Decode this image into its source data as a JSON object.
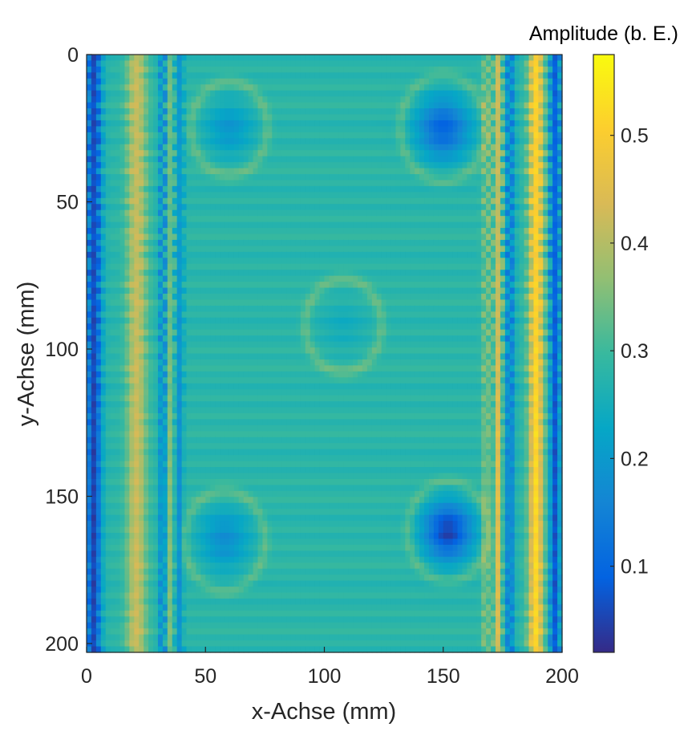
{
  "chart_data": {
    "type": "heatmap",
    "title": "",
    "xlabel": "x-Achse (mm)",
    "ylabel": "y-Achse (mm)",
    "xlim": [
      0,
      200
    ],
    "ylim": [
      0,
      203
    ],
    "y_direction": "reversed (0 at top)",
    "x_ticks": [
      "0",
      "50",
      "100",
      "150",
      "200"
    ],
    "y_ticks": [
      "0",
      "50",
      "100",
      "150",
      "200"
    ],
    "colorbar": {
      "title": "Amplitude (b. E.)",
      "range": [
        0.02,
        0.575
      ],
      "ticks": [
        "0.1",
        "0.2",
        "0.3",
        "0.4",
        "0.5"
      ],
      "colormap": "parula",
      "colors": [
        "#352a87",
        "#0363e1",
        "#1485d4",
        "#06a7c6",
        "#38b99e",
        "#92bf73",
        "#d9ba56",
        "#fcce2e",
        "#f9fb0e"
      ]
    },
    "grid": false,
    "features": {
      "background_value": 0.28,
      "left_edge_bands": [
        {
          "x": 3,
          "value": 0.05,
          "width": 3
        },
        {
          "x": 21,
          "value": 0.42,
          "width": 4
        },
        {
          "x": 32,
          "value": 0.16,
          "width": 1.5
        },
        {
          "x": 35,
          "value": 0.36,
          "width": 1.5
        },
        {
          "x": 39,
          "value": 0.18,
          "width": 1.5
        }
      ],
      "right_edge_bands": [
        {
          "x": 168,
          "value": 0.36,
          "width": 1.5
        },
        {
          "x": 173,
          "value": 0.45,
          "width": 1.5
        },
        {
          "x": 178,
          "value": 0.14,
          "width": 1.8
        },
        {
          "x": 189,
          "value": 0.52,
          "width": 3
        },
        {
          "x": 197,
          "value": 0.07,
          "width": 2
        }
      ],
      "defects": [
        {
          "x": 60,
          "y": 25,
          "radius": 16,
          "center_value": 0.2
        },
        {
          "x": 150,
          "y": 25,
          "radius": 18,
          "center_value": 0.1
        },
        {
          "x": 108,
          "y": 92,
          "radius": 16,
          "center_value": 0.25
        },
        {
          "x": 58,
          "y": 165,
          "radius": 17,
          "center_value": 0.18
        },
        {
          "x": 152,
          "y": 162,
          "radius": 17,
          "center_value": 0.05
        }
      ]
    }
  }
}
